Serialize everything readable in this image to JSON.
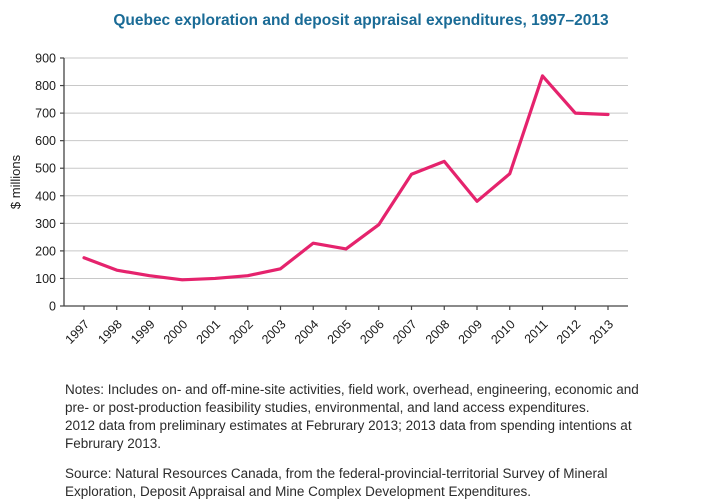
{
  "chart_data": {
    "type": "line",
    "title": "Quebec exploration and deposit appraisal expenditures, 1997–2013",
    "categories": [
      "1997",
      "1998",
      "1999",
      "2000",
      "2001",
      "2002",
      "2003",
      "2004",
      "2005",
      "2006",
      "2007",
      "2008",
      "2009",
      "2010",
      "2011",
      "2012",
      "2013"
    ],
    "values": [
      175,
      130,
      110,
      95,
      100,
      110,
      135,
      228,
      207,
      295,
      478,
      525,
      380,
      480,
      835,
      700,
      695
    ],
    "xlabel": "",
    "ylabel": "$ millions",
    "ylim": [
      0,
      900
    ],
    "ytick_step": 100,
    "grid": true,
    "legend": "none"
  },
  "colors": {
    "title": "#1a6b96",
    "line": "#e5236d",
    "grid": "#c8c8c8",
    "axis": "#444444",
    "text": "#1a1a1a"
  },
  "notes": {
    "lines": [
      "Notes: Includes on- and off-mine-site activities, field work, overhead, engineering, economic and",
      "pre- or post-production feasibility studies, environmental, and land access expenditures.",
      "2012 data from preliminary estimates at Februrary 2013; 2013 data from spending intentions at",
      "Februrary 2013."
    ]
  },
  "source": {
    "lines": [
      "Source: Natural Resources Canada, from the federal-provincial-territorial Survey of Mineral",
      "Exploration, Deposit Appraisal and Mine Complex Development Expenditures."
    ]
  }
}
